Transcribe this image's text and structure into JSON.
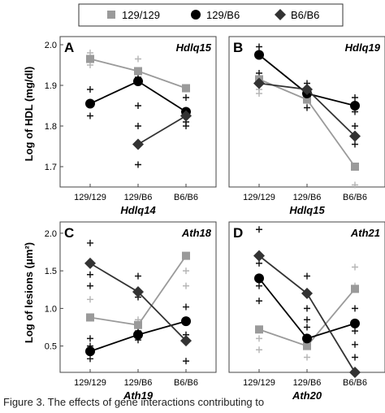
{
  "legend": {
    "entries": [
      {
        "label": "129/129",
        "color": "#9a9a9a",
        "marker": "square"
      },
      {
        "label": "129/B6",
        "color": "#000000",
        "marker": "circle"
      },
      {
        "label": "B6/B6",
        "color": "#333333",
        "marker": "diamond"
      }
    ]
  },
  "caption": "Figure 3. The effects of gene interactions contributing to",
  "chart_data": [
    {
      "type": "line",
      "panel": "A",
      "title": "Hdlq15",
      "xlabel": "Hdlq14",
      "ylabel": "Log of HDL (mg/dl)",
      "categories": [
        "129/129",
        "129/B6",
        "B6/B6"
      ],
      "ylim": [
        1.65,
        2.02
      ],
      "yticks": [
        "1.7",
        "1.8",
        "1.9",
        "2.0"
      ],
      "series": [
        {
          "name": "129/129",
          "values": [
            1.965,
            1.935,
            1.893
          ]
        },
        {
          "name": "129/B6",
          "values": [
            1.855,
            1.91,
            1.835
          ]
        },
        {
          "name": "B6/B6",
          "values": [
            null,
            1.755,
            1.825
          ]
        }
      ],
      "scatter": [
        {
          "x": 0,
          "y": 1.98,
          "series": "129/129"
        },
        {
          "x": 0,
          "y": 1.95,
          "series": "129/129"
        },
        {
          "x": 0,
          "y": 1.89,
          "series": "129/B6"
        },
        {
          "x": 0,
          "y": 1.825,
          "series": "129/B6"
        },
        {
          "x": 1,
          "y": 1.965,
          "series": "129/129"
        },
        {
          "x": 1,
          "y": 1.92,
          "series": "129/B6"
        },
        {
          "x": 1,
          "y": 1.85,
          "series": "129/B6"
        },
        {
          "x": 1,
          "y": 1.8,
          "series": "B6/B6"
        },
        {
          "x": 1,
          "y": 1.705,
          "series": "B6/B6"
        },
        {
          "x": 2,
          "y": 1.87,
          "series": "129/B6"
        },
        {
          "x": 2,
          "y": 1.81,
          "series": "B6/B6"
        },
        {
          "x": 2,
          "y": 1.8,
          "series": "129/B6"
        }
      ]
    },
    {
      "type": "line",
      "panel": "B",
      "title": "Hdlq19",
      "xlabel": "Hdlq15",
      "ylabel": "",
      "categories": [
        "129/129",
        "129/B6",
        "B6/B6"
      ],
      "ylim": [
        1.65,
        2.02
      ],
      "yticks": [],
      "series": [
        {
          "name": "129/129",
          "values": [
            1.915,
            1.865,
            1.7
          ]
        },
        {
          "name": "129/B6",
          "values": [
            1.975,
            1.88,
            1.85
          ]
        },
        {
          "name": "B6/B6",
          "values": [
            1.905,
            1.89,
            1.775
          ]
        }
      ],
      "scatter": [
        {
          "x": 0,
          "y": 1.995,
          "series": "129/B6"
        },
        {
          "x": 0,
          "y": 1.93,
          "series": "B6/B6"
        },
        {
          "x": 0,
          "y": 1.89,
          "series": "129/129"
        },
        {
          "x": 0,
          "y": 1.88,
          "series": "129/129"
        },
        {
          "x": 1,
          "y": 1.905,
          "series": "B6/B6"
        },
        {
          "x": 1,
          "y": 1.895,
          "series": "129/B6"
        },
        {
          "x": 1,
          "y": 1.885,
          "series": "129/129"
        },
        {
          "x": 1,
          "y": 1.875,
          "series": "B6/B6"
        },
        {
          "x": 1,
          "y": 1.86,
          "series": "129/129"
        },
        {
          "x": 1,
          "y": 1.845,
          "series": "129/B6"
        },
        {
          "x": 2,
          "y": 1.87,
          "series": "129/B6"
        },
        {
          "x": 2,
          "y": 1.835,
          "series": "129/B6"
        },
        {
          "x": 2,
          "y": 1.8,
          "series": "B6/B6"
        },
        {
          "x": 2,
          "y": 1.755,
          "series": "B6/B6"
        },
        {
          "x": 2,
          "y": 1.655,
          "series": "129/129"
        }
      ]
    },
    {
      "type": "line",
      "panel": "C",
      "title": "Ath18",
      "xlabel": "Ath19",
      "ylabel": "Log of lesions (μm²)",
      "categories": [
        "129/129",
        "129/B6",
        "B6/B6"
      ],
      "ylim": [
        0.15,
        2.15
      ],
      "yticks": [
        "0.5",
        "1.0",
        "1.5",
        "2.0"
      ],
      "series": [
        {
          "name": "129/129",
          "values": [
            0.88,
            0.78,
            1.7
          ]
        },
        {
          "name": "129/B6",
          "values": [
            0.43,
            0.65,
            0.83
          ]
        },
        {
          "name": "B6/B6",
          "values": [
            1.6,
            1.22,
            0.57
          ]
        }
      ],
      "scatter": [
        {
          "x": 0,
          "y": 1.87,
          "series": "B6/B6"
        },
        {
          "x": 0,
          "y": 1.45,
          "series": "B6/B6"
        },
        {
          "x": 0,
          "y": 1.3,
          "series": "B6/B6"
        },
        {
          "x": 0,
          "y": 1.12,
          "series": "129/129"
        },
        {
          "x": 0,
          "y": 0.6,
          "series": "129/B6"
        },
        {
          "x": 0,
          "y": 0.5,
          "series": "129/B6"
        },
        {
          "x": 0,
          "y": 0.33,
          "series": "129/B6"
        },
        {
          "x": 1,
          "y": 1.43,
          "series": "B6/B6"
        },
        {
          "x": 1,
          "y": 1.15,
          "series": "B6/B6"
        },
        {
          "x": 1,
          "y": 0.85,
          "series": "129/129"
        },
        {
          "x": 1,
          "y": 0.7,
          "series": "129/B6"
        },
        {
          "x": 1,
          "y": 0.58,
          "series": "129/B6"
        },
        {
          "x": 2,
          "y": 1.5,
          "series": "129/129"
        },
        {
          "x": 2,
          "y": 1.3,
          "series": "129/129"
        },
        {
          "x": 2,
          "y": 1.02,
          "series": "129/B6"
        },
        {
          "x": 2,
          "y": 0.65,
          "series": "129/B6"
        },
        {
          "x": 2,
          "y": 0.3,
          "series": "B6/B6"
        }
      ]
    },
    {
      "type": "line",
      "panel": "D",
      "title": "Ath21",
      "xlabel": "Ath20",
      "ylabel": "",
      "categories": [
        "129/129",
        "129/B6",
        "B6/B6"
      ],
      "ylim": [
        0.15,
        2.15
      ],
      "yticks": [],
      "series": [
        {
          "name": "129/129",
          "values": [
            0.72,
            0.5,
            1.26
          ]
        },
        {
          "name": "129/B6",
          "values": [
            1.4,
            0.6,
            0.8
          ]
        },
        {
          "name": "B6/B6",
          "values": [
            1.7,
            1.2,
            0.15
          ]
        }
      ],
      "scatter": [
        {
          "x": 0,
          "y": 2.05,
          "series": "B6/B6"
        },
        {
          "x": 0,
          "y": 1.6,
          "series": "B6/B6"
        },
        {
          "x": 0,
          "y": 1.3,
          "series": "129/B6"
        },
        {
          "x": 0,
          "y": 1.1,
          "series": "129/B6"
        },
        {
          "x": 0,
          "y": 0.6,
          "series": "129/129"
        },
        {
          "x": 0,
          "y": 0.45,
          "series": "129/129"
        },
        {
          "x": 1,
          "y": 1.43,
          "series": "B6/B6"
        },
        {
          "x": 1,
          "y": 1.0,
          "series": "B6/B6"
        },
        {
          "x": 1,
          "y": 0.85,
          "series": "129/B6"
        },
        {
          "x": 1,
          "y": 0.75,
          "series": "129/B6"
        },
        {
          "x": 1,
          "y": 0.5,
          "series": "129/129"
        },
        {
          "x": 1,
          "y": 0.35,
          "series": "129/129"
        },
        {
          "x": 2,
          "y": 1.55,
          "series": "129/129"
        },
        {
          "x": 2,
          "y": 1.3,
          "series": "129/129"
        },
        {
          "x": 2,
          "y": 1.0,
          "series": "129/B6"
        },
        {
          "x": 2,
          "y": 0.7,
          "series": "129/B6"
        },
        {
          "x": 2,
          "y": 0.52,
          "series": "B6/B6"
        },
        {
          "x": 2,
          "y": 0.35,
          "series": "B6/B6"
        }
      ]
    }
  ]
}
